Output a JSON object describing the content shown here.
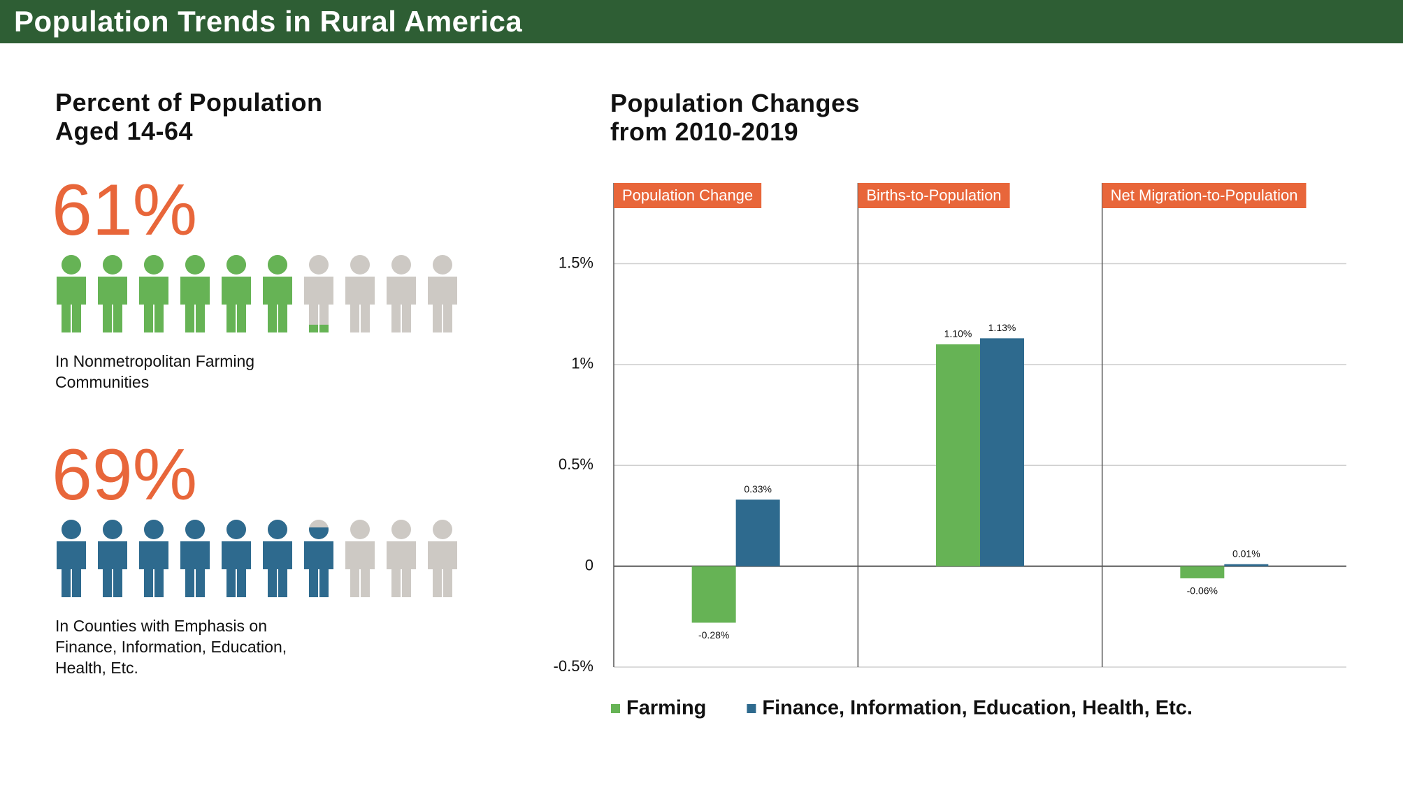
{
  "header": {
    "title": "Population Trends in Rural America"
  },
  "chart_data": [
    {
      "type": "pictogram",
      "title": "Percent of Population\nAged 14-64",
      "xlim": [
        0,
        100
      ],
      "series": [
        {
          "name": "In Nonmetropolitan Farming Communities",
          "color": "#66b355",
          "values": [
            61
          ],
          "value_labels": [
            "61%"
          ]
        },
        {
          "name": "In Counties with Emphasis on Finance, Information, Education, Health, Etc.",
          "color": "#2e6a8e",
          "values": [
            69
          ],
          "value_labels": [
            "69%"
          ]
        }
      ],
      "base_color": "#cdc9c4",
      "label_color": "#e8663a"
    },
    {
      "type": "bar",
      "title": "Population Changes\nfrom 2010-2019",
      "categories": [
        "Population Change",
        "Births-to-Population",
        "Net Migration-to-Population"
      ],
      "category_color": "#e8663a",
      "series": [
        {
          "name": "Farming",
          "color": "#66b355",
          "values": [
            -0.28,
            1.1,
            -0.06
          ],
          "value_labels": [
            "-0.28%",
            "1.10%",
            "-0.06%"
          ]
        },
        {
          "name": "Finance, Information, Education, Health, Etc.",
          "color": "#2e6a8e",
          "values": [
            0.33,
            1.13,
            0.01
          ],
          "value_labels": [
            "0.33%",
            "1.13%",
            "0.01%"
          ]
        }
      ],
      "ylim": [
        -0.5,
        1.9
      ],
      "yticks": [
        {
          "value": -0.5,
          "label": "-0.5%"
        },
        0,
        {
          "value": 0.5,
          "label": "0.5%"
        },
        {
          "value": 1,
          "label": "1%"
        },
        {
          "value": 1.5,
          "label": "1.5%"
        }
      ],
      "grid": true,
      "legend": "bottom"
    }
  ]
}
